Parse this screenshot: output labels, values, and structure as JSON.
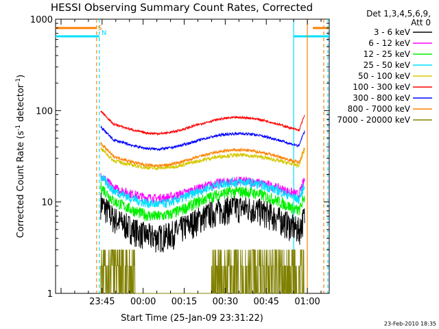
{
  "chart_data": {
    "type": "line",
    "title": "HESSI Observing Summary Count Rates, Corrected",
    "xlabel": "Start Time (25-Jan-09 23:31:22)",
    "ylabel_main": "Corrected Count Rate (s",
    "ylabel_sup1": "-1",
    "ylabel_mid": " detector",
    "ylabel_sup2": "-1",
    "ylabel_end": ")",
    "ylim": [
      1,
      1000
    ],
    "yscale": "log",
    "xlim_minutes": [
      -17,
      83
    ],
    "x_tick_labels": [
      {
        "label": "23:45",
        "t": 0
      },
      {
        "label": "00:00",
        "t": 15
      },
      {
        "label": "00:15",
        "t": 30
      },
      {
        "label": "00:30",
        "t": 45
      },
      {
        "label": "00:45",
        "t": 60
      },
      {
        "label": "01:00",
        "t": 75
      }
    ],
    "y_tick_labels": [
      {
        "label": "1",
        "v": 1
      },
      {
        "label": "10",
        "v": 10
      },
      {
        "label": "100",
        "v": 100
      },
      {
        "label": "1000",
        "v": 1000
      }
    ],
    "legend_header": [
      "Det 1,3,4,5,6,9,",
      "Att 0"
    ],
    "legend_position": "right",
    "footer_date": "23-Feb-2010 18:35",
    "markers": [
      {
        "label": "S",
        "color": "#ff8000"
      },
      {
        "label": "N",
        "color": "#00e0ff"
      }
    ],
    "series": [
      {
        "name": "3 - 6 keV",
        "color": "#000000",
        "base": 6.5,
        "amp": 2.3,
        "noise": 0.35
      },
      {
        "name": "6 - 12 keV",
        "color": "#ff00ff",
        "base": 14,
        "amp": 3.0,
        "noise": 0.12
      },
      {
        "name": "12 - 25 keV",
        "color": "#00ee00",
        "base": 10,
        "amp": 3.0,
        "noise": 0.15
      },
      {
        "name": "25 - 50 keV",
        "color": "#00e0ff",
        "base": 13,
        "amp": 3.5,
        "noise": 0.12
      },
      {
        "name": "50 - 100 keV",
        "color": "#d4c800",
        "base": 28,
        "amp": 4.5,
        "noise": 0.05
      },
      {
        "name": "100 - 300 keV",
        "color": "#ff0000",
        "base": 70,
        "amp": 14,
        "noise": 0.03
      },
      {
        "name": "300 - 800 keV",
        "color": "#0000ff",
        "base": 47,
        "amp": 9,
        "noise": 0.035
      },
      {
        "name": "800 - 7000 keV",
        "color": "#ff8000",
        "base": 31,
        "amp": 6,
        "noise": 0.04
      },
      {
        "name": "7000 - 20000 keV",
        "color": "#808000",
        "base": 1.3,
        "amp": 0.8,
        "noise": 0.6
      }
    ],
    "spacecraft_flags": [
      {
        "color": "#ff8000",
        "level": 800,
        "segments": [
          [
            -17,
            -2
          ],
          [
            77,
            83
          ]
        ]
      },
      {
        "color": "#00e0ff",
        "level": 650,
        "segments": [
          [
            -17,
            -1
          ],
          [
            70,
            83
          ]
        ]
      }
    ],
    "verticals": [
      {
        "t": -2,
        "color": "#ff8000",
        "dash": true
      },
      {
        "t": -1,
        "color": "#00e0ff",
        "dash": true
      },
      {
        "t": 70,
        "color": "#00e0ff",
        "dash": false
      },
      {
        "t": 75,
        "color": "#ff8000",
        "dash": false
      },
      {
        "t": 81,
        "color": "#ff8000",
        "dash": true
      },
      {
        "t": 82.5,
        "color": "#00e0ff",
        "dash": true
      }
    ],
    "data_window_minutes": [
      -0.5,
      74
    ]
  }
}
